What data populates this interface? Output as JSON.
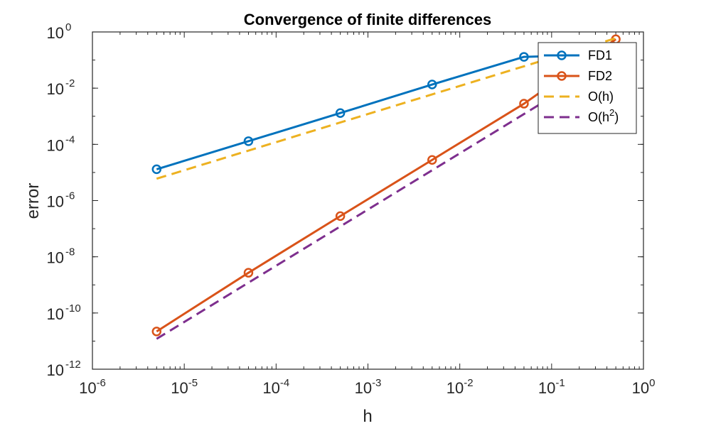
{
  "chart_data": {
    "type": "line",
    "title": "Convergence of finite differences",
    "xlabel": "h",
    "ylabel": "error",
    "xscale": "log",
    "yscale": "log",
    "xlim": [
      1e-06,
      1
    ],
    "ylim": [
      1e-12,
      1
    ],
    "box": true,
    "grid": false,
    "legend_position": "top-right",
    "x_ticks": [
      {
        "base": "10",
        "exp": "-6",
        "value": 1e-06
      },
      {
        "base": "10",
        "exp": "-5",
        "value": 1e-05
      },
      {
        "base": "10",
        "exp": "-4",
        "value": 0.0001
      },
      {
        "base": "10",
        "exp": "-3",
        "value": 0.001
      },
      {
        "base": "10",
        "exp": "-2",
        "value": 0.01
      },
      {
        "base": "10",
        "exp": "-1",
        "value": 0.1
      },
      {
        "base": "10",
        "exp": "0",
        "value": 1
      }
    ],
    "y_ticks": [
      {
        "base": "10",
        "exp": "-12",
        "value": 1e-12
      },
      {
        "base": "10",
        "exp": "-10",
        "value": 1e-10
      },
      {
        "base": "10",
        "exp": "-8",
        "value": 1e-08
      },
      {
        "base": "10",
        "exp": "-6",
        "value": 1e-06
      },
      {
        "base": "10",
        "exp": "-4",
        "value": 0.0001
      },
      {
        "base": "10",
        "exp": "-2",
        "value": 0.01
      },
      {
        "base": "10",
        "exp": "0",
        "value": 1
      }
    ],
    "series": [
      {
        "name": "FD1",
        "legend_sup": "",
        "color": "#0072BD",
        "style": "solid",
        "marker": "circle",
        "x": [
          5e-06,
          5e-05,
          0.0005,
          0.005,
          0.05,
          0.5
        ],
        "y": [
          1.3e-05,
          0.00013,
          0.0013,
          0.0135,
          0.13,
          0.16
        ]
      },
      {
        "name": "FD2",
        "legend_sup": "",
        "color": "#D95319",
        "style": "solid",
        "marker": "circle",
        "x": [
          5e-06,
          5e-05,
          0.0005,
          0.005,
          0.05,
          0.5
        ],
        "y": [
          2.2e-11,
          2.7e-09,
          2.8e-07,
          2.8e-05,
          0.0028,
          0.55
        ]
      },
      {
        "name": "O(h)",
        "legend_sup": "",
        "color": "#EDB120",
        "style": "dashed",
        "marker": "none",
        "x": [
          5e-06,
          0.5
        ],
        "y": [
          6e-06,
          0.6
        ]
      },
      {
        "name": "O(h",
        "legend_sup": "2",
        "legend_suffix": ")",
        "color": "#7E2F8E",
        "style": "dashed",
        "marker": "none",
        "x": [
          5e-06,
          0.5
        ],
        "y": [
          1.2e-11,
          0.12
        ]
      }
    ]
  }
}
